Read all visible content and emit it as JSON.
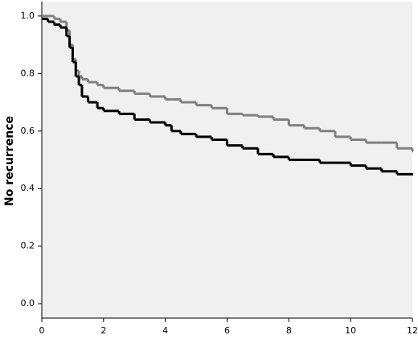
{
  "chart_data": {
    "type": "line",
    "step": true,
    "y_label": "No recurrence",
    "x": [
      0,
      0.2,
      0.4,
      0.6,
      0.8,
      0.9,
      1.0,
      1.1,
      1.2,
      1.3,
      1.5,
      1.8,
      2,
      2.2,
      2.5,
      3,
      3.5,
      4,
      4.2,
      4.5,
      5,
      5.5,
      6,
      6.5,
      7,
      7.5,
      8,
      8.5,
      9,
      9.5,
      10,
      10.5,
      11,
      11.5,
      12
    ],
    "series": [
      {
        "color": "#808080",
        "values": [
          1.0,
          1.0,
          0.99,
          0.98,
          0.95,
          0.9,
          0.85,
          0.81,
          0.79,
          0.78,
          0.77,
          0.76,
          0.75,
          0.75,
          0.74,
          0.73,
          0.72,
          0.71,
          0.71,
          0.7,
          0.69,
          0.68,
          0.66,
          0.655,
          0.65,
          0.64,
          0.62,
          0.61,
          0.6,
          0.58,
          0.57,
          0.56,
          0.56,
          0.54,
          0.53
        ]
      },
      {
        "color": "#000000",
        "values": [
          0.99,
          0.98,
          0.97,
          0.96,
          0.93,
          0.89,
          0.84,
          0.79,
          0.76,
          0.72,
          0.7,
          0.68,
          0.67,
          0.67,
          0.66,
          0.64,
          0.63,
          0.62,
          0.6,
          0.59,
          0.58,
          0.57,
          0.55,
          0.54,
          0.52,
          0.51,
          0.5,
          0.5,
          0.49,
          0.49,
          0.48,
          0.47,
          0.46,
          0.45,
          0.45
        ]
      }
    ],
    "xlim": [
      0,
      12
    ],
    "xticks": [
      0,
      2,
      4,
      6,
      8,
      10,
      12
    ],
    "ylim": [
      -0.05,
      1.05
    ],
    "yticks": [
      {
        "value": 0,
        "label": "0.0"
      },
      0.2,
      0.4,
      0.6,
      0.8,
      {
        "value": 1,
        "label": "1.0"
      }
    ],
    "background": "#f0f0f0"
  }
}
